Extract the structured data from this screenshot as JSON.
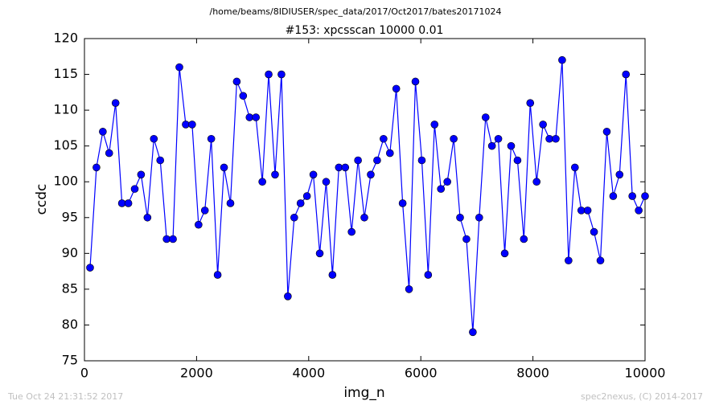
{
  "chart_data": {
    "type": "line",
    "suptitle": "/home/beams/8IDIUSER/spec_data/2017/Oct2017/bates20171024",
    "title": "#153: xpcsscan 10000 0.01",
    "x_label": "img_n",
    "y_label": "ccdc",
    "timestamp": "Tue Oct 24 21:31:52 2017",
    "credit": "spec2nexus, (C) 2014-2017",
    "xlim": [
      0,
      10000
    ],
    "ylim": [
      75,
      120
    ],
    "xticks": [
      0,
      2000,
      4000,
      6000,
      8000,
      10000
    ],
    "yticks": [
      75,
      80,
      85,
      90,
      95,
      100,
      105,
      110,
      115,
      120
    ],
    "x": [
      100,
      214,
      328,
      441,
      555,
      669,
      783,
      897,
      1010,
      1124,
      1238,
      1352,
      1466,
      1579,
      1693,
      1807,
      1921,
      2035,
      2148,
      2262,
      2376,
      2490,
      2604,
      2717,
      2831,
      2945,
      3059,
      3173,
      3286,
      3400,
      3514,
      3628,
      3742,
      3855,
      3969,
      4083,
      4197,
      4311,
      4424,
      4538,
      4652,
      4766,
      4880,
      4993,
      5107,
      5221,
      5335,
      5449,
      5562,
      5676,
      5790,
      5904,
      6018,
      6131,
      6245,
      6359,
      6473,
      6587,
      6700,
      6814,
      6928,
      7042,
      7156,
      7269,
      7383,
      7497,
      7611,
      7725,
      7838,
      7952,
      8066,
      8180,
      8294,
      8407,
      8521,
      8635,
      8749,
      8863,
      8976,
      9090,
      9204,
      9318,
      9432,
      9545,
      9659,
      9773,
      9887,
      10000
    ],
    "series": [
      {
        "color": "#0000ff",
        "values": [
          88,
          102,
          107,
          104,
          111,
          97,
          97,
          99,
          101,
          95,
          106,
          103,
          92,
          92,
          116,
          108,
          108,
          94,
          96,
          106,
          87,
          102,
          97,
          114,
          112,
          109,
          109,
          100,
          115,
          101,
          115,
          84,
          95,
          97,
          98,
          101,
          90,
          100,
          87,
          102,
          102,
          93,
          103,
          95,
          101,
          103,
          106,
          104,
          113,
          97,
          85,
          114,
          103,
          87,
          108,
          99,
          100,
          106,
          95,
          92,
          79,
          95,
          109,
          105,
          106,
          90,
          105,
          103,
          92,
          111,
          100,
          108,
          106,
          106,
          117,
          89,
          102,
          96,
          96,
          93,
          89,
          107,
          98,
          101,
          115,
          98,
          96,
          98
        ]
      }
    ]
  }
}
